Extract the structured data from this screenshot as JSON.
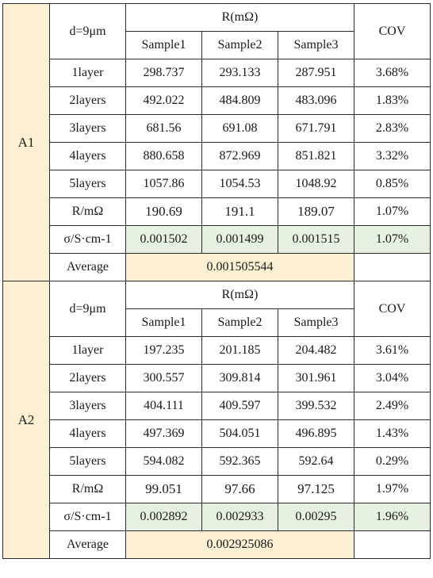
{
  "blocks": [
    {
      "group": "A1",
      "thickness": "d=9μm",
      "r_header": "R(mΩ)",
      "cov_header": "COV",
      "samples": [
        "Sample1",
        "Sample2",
        "Sample3"
      ],
      "rows": [
        {
          "label": "1layer",
          "values": [
            "298.737",
            "293.133",
            "287.951"
          ],
          "cov": "3.68%"
        },
        {
          "label": "2layers",
          "values": [
            "492.022",
            "484.809",
            "483.096"
          ],
          "cov": "1.83%"
        },
        {
          "label": "3layers",
          "values": [
            "681.56",
            "691.08",
            "671.791"
          ],
          "cov": "2.83%"
        },
        {
          "label": "4layers",
          "values": [
            "880.658",
            "872.969",
            "851.821"
          ],
          "cov": "3.32%"
        },
        {
          "label": "5layers",
          "values": [
            "1057.86",
            "1054.53",
            "1048.92"
          ],
          "cov": "0.85%"
        }
      ],
      "r_row": {
        "label": "R/mΩ",
        "values": [
          "190.69",
          "191.1",
          "189.07"
        ],
        "cov": "1.07%"
      },
      "sigma_row": {
        "label": "σ/S·cm-1",
        "values": [
          "0.001502",
          "0.001499",
          "0.001515"
        ],
        "cov": "1.07%"
      },
      "average": {
        "label": "Average",
        "value": "0.001505544"
      }
    },
    {
      "group": "A2",
      "thickness": "d=9μm",
      "r_header": "R(mΩ)",
      "cov_header": "COV",
      "samples": [
        "Sample1",
        "Sample2",
        "Sample3"
      ],
      "rows": [
        {
          "label": "1layer",
          "values": [
            "197.235",
            "201.185",
            "204.482"
          ],
          "cov": "3.61%"
        },
        {
          "label": "2layers",
          "values": [
            "300.557",
            "309.814",
            "301.961"
          ],
          "cov": "3.04%"
        },
        {
          "label": "3layers",
          "values": [
            "404.111",
            "409.597",
            "399.532"
          ],
          "cov": "2.49%"
        },
        {
          "label": "4layers",
          "values": [
            "497.369",
            "504.051",
            "496.895"
          ],
          "cov": "1.43%"
        },
        {
          "label": "5layers",
          "values": [
            "594.082",
            "592.365",
            "592.64"
          ],
          "cov": "0.29%"
        }
      ],
      "r_row": {
        "label": "R/mΩ",
        "values": [
          "99.051",
          "97.66",
          "97.125"
        ],
        "cov": "1.97%"
      },
      "sigma_row": {
        "label": "σ/S·cm-1",
        "values": [
          "0.002892",
          "0.002933",
          "0.00295"
        ],
        "cov": "1.96%"
      },
      "average": {
        "label": "Average",
        "value": "0.002925086"
      }
    }
  ]
}
